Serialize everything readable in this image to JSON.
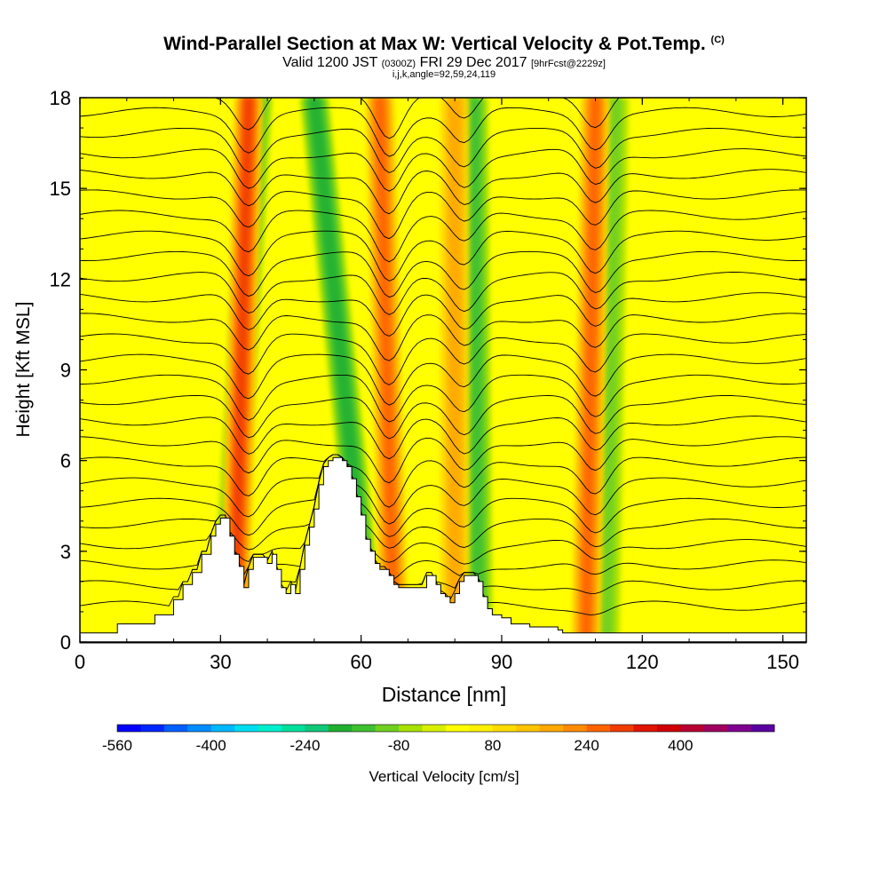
{
  "header": {
    "title": "Wind-Parallel Section at Max W: Vertical Velocity & Pot.Temp.",
    "copyright": "(C)",
    "valid_main": "Valid 1200 JST",
    "valid_utc": "(0300Z)",
    "valid_date": "FRI 29 Dec 2017",
    "forecast": "[9hrFcst@2229z]",
    "indices": "i,j,k,angle=92,59,24,119"
  },
  "colors": {
    "background": "#ffff00",
    "contour": "#000000",
    "terrain": "#ffffff"
  },
  "chart_data": {
    "type": "heatmap",
    "xlabel": "Distance [nm]",
    "ylabel": "Height [Kft MSL]",
    "xlim": [
      0,
      155
    ],
    "ylim": [
      0,
      18
    ],
    "xticks": [
      "0",
      "30",
      "60",
      "90",
      "120",
      "150"
    ],
    "yticks": [
      "0",
      "3",
      "6",
      "9",
      "12",
      "15",
      "18"
    ],
    "terrain_height_kft": {
      "x": [
        0,
        8,
        16,
        20,
        22,
        24,
        26,
        28,
        29,
        30,
        31,
        32,
        33,
        34,
        35,
        36,
        37,
        38,
        40,
        41,
        42,
        43,
        44,
        45,
        46,
        47,
        48,
        49,
        50,
        51,
        52,
        53,
        54,
        55,
        56,
        57,
        58,
        59,
        60,
        61,
        62,
        63,
        64,
        65,
        66,
        67,
        68,
        69,
        70,
        72,
        74,
        75,
        76,
        77,
        78,
        79,
        80,
        81,
        82,
        84,
        85,
        86,
        87,
        88,
        90,
        92,
        96,
        100,
        102,
        103,
        104,
        155
      ],
      "y": [
        0.3,
        0.6,
        0.9,
        1.4,
        1.9,
        2.3,
        2.9,
        3.5,
        3.9,
        4.1,
        4.1,
        3.5,
        2.9,
        2.5,
        1.8,
        2.4,
        2.8,
        2.8,
        2.6,
        2.9,
        2.4,
        1.8,
        1.6,
        1.9,
        1.6,
        2.4,
        3.2,
        3.8,
        4.4,
        5.2,
        5.8,
        6.0,
        6.1,
        6.1,
        6.0,
        5.8,
        5.4,
        4.8,
        4.2,
        3.4,
        3.0,
        2.6,
        2.4,
        2.4,
        2.2,
        1.9,
        1.8,
        1.8,
        1.8,
        1.8,
        2.2,
        2.2,
        1.9,
        1.6,
        1.5,
        1.3,
        1.6,
        2.0,
        2.2,
        2.2,
        2.0,
        1.5,
        1.1,
        0.9,
        0.8,
        0.6,
        0.5,
        0.5,
        0.4,
        0.3,
        0.3,
        0.3
      ]
    },
    "updraft_bands": [
      {
        "x_base": 33,
        "x_top": 36,
        "max_cm_s": 300
      },
      {
        "x_base": 67,
        "x_top": 64,
        "max_cm_s": 260
      },
      {
        "x_base": 80,
        "x_top": 80,
        "max_cm_s": 180
      },
      {
        "x_base": 108,
        "x_top": 110,
        "max_cm_s": 240
      }
    ],
    "downdraft_bands": [
      {
        "x_base": 31,
        "x_top": 38,
        "min_cm_s": -160
      },
      {
        "x_base": 62,
        "x_top": 50,
        "min_cm_s": -200
      },
      {
        "x_base": 85,
        "x_top": 84,
        "min_cm_s": -160
      },
      {
        "x_base": 112,
        "x_top": 114,
        "min_cm_s": -140
      }
    ],
    "colorbar": {
      "label": "Vertical Velocity [cm/s]",
      "tick_labels": [
        "-560",
        "-400",
        "-240",
        "-80",
        "80",
        "240",
        "400"
      ],
      "colors": [
        "#0000ff",
        "#0026ff",
        "#0060ff",
        "#008cff",
        "#00b8ff",
        "#00dcf0",
        "#00eecc",
        "#00e09c",
        "#10c878",
        "#20b030",
        "#40c030",
        "#70d020",
        "#a8e000",
        "#d8f000",
        "#ffff00",
        "#fff000",
        "#ffdc00",
        "#ffc400",
        "#ffa800",
        "#ff8c00",
        "#ff6400",
        "#f03c00",
        "#e01400",
        "#d00000",
        "#b80030",
        "#a00060",
        "#800090",
        "#5a00a0"
      ]
    }
  }
}
